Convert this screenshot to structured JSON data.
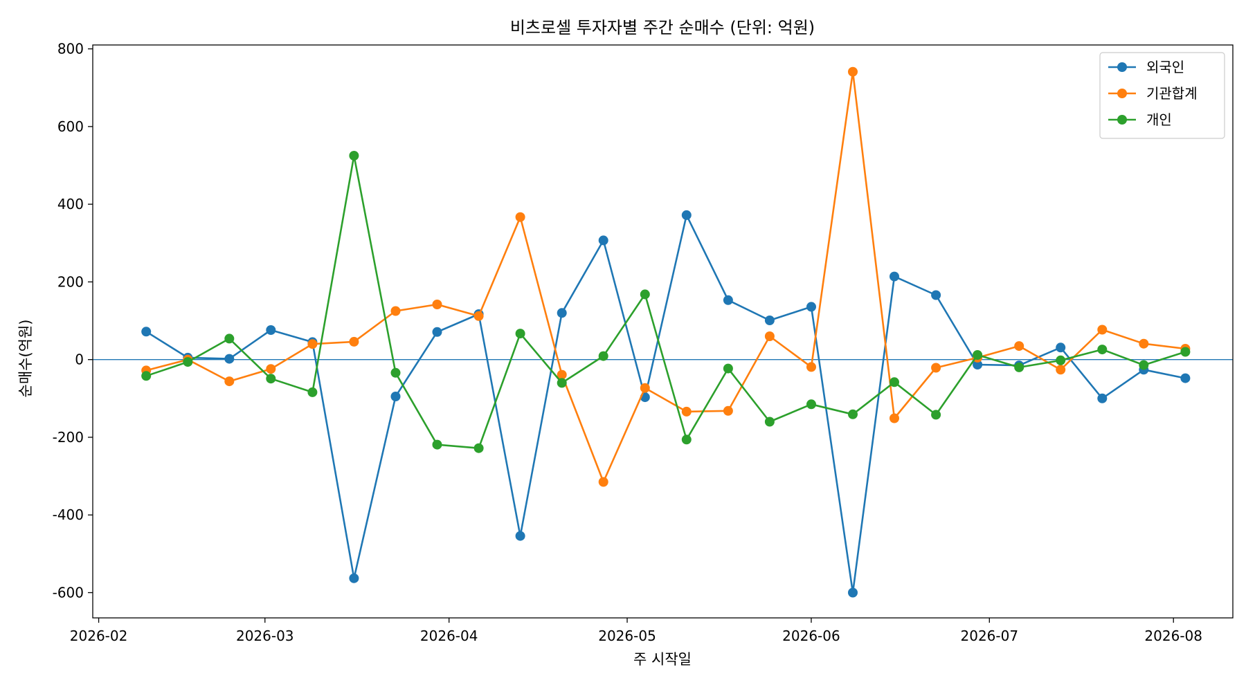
{
  "chart_data": {
    "type": "line",
    "title": "비츠로셀 투자자별 주간 순매수 (단위: 억원)",
    "xlabel": "주 시작일",
    "ylabel": "순매수(억원)",
    "x_ticks": [
      "2026-02",
      "2026-03",
      "2026-04",
      "2026-05",
      "2026-06",
      "2026-07",
      "2026-08"
    ],
    "y_ticks": [
      "800",
      "600",
      "400",
      "200",
      "0",
      "-200",
      "-400",
      "-600"
    ],
    "ylim": [
      -665,
      810
    ],
    "xlim": [
      "2026-01-31",
      "2026-08-11"
    ],
    "grid": false,
    "legend_position": "top-right",
    "zero_line": true,
    "x": [
      "2026-02-09",
      "2026-02-16",
      "2026-02-23",
      "2026-03-02",
      "2026-03-09",
      "2026-03-16",
      "2026-03-23",
      "2026-03-30",
      "2026-04-06",
      "2026-04-13",
      "2026-04-20",
      "2026-04-27",
      "2026-05-04",
      "2026-05-11",
      "2026-05-18",
      "2026-05-25",
      "2026-06-01",
      "2026-06-08",
      "2026-06-15",
      "2026-06-22",
      "2026-06-29",
      "2026-07-06",
      "2026-07-13",
      "2026-07-20",
      "2026-07-27",
      "2026-08-03"
    ],
    "series": [
      {
        "name": "외국인",
        "color": "#1f77b4",
        "values": [
          72,
          5,
          2,
          76,
          45,
          -563,
          -95,
          71,
          117,
          -454,
          120,
          307,
          -97,
          372,
          153,
          101,
          136,
          -600,
          214,
          166,
          -13,
          -15,
          31,
          -100,
          -26,
          -48
        ]
      },
      {
        "name": "기관합계",
        "color": "#ff7f0e",
        "values": [
          -28,
          0,
          -56,
          -24,
          40,
          46,
          125,
          142,
          112,
          367,
          -39,
          -315,
          -73,
          -134,
          -132,
          60,
          -19,
          741,
          -151,
          -21,
          5,
          35,
          -26,
          77,
          41,
          28
        ]
      },
      {
        "name": "개인",
        "color": "#2ca02c",
        "values": [
          -42,
          -6,
          54,
          -49,
          -84,
          525,
          -34,
          -219,
          -228,
          67,
          -60,
          9,
          168,
          -206,
          -23,
          -160,
          -115,
          -141,
          -58,
          -142,
          12,
          -20,
          -2,
          26,
          -14,
          20
        ]
      }
    ]
  }
}
